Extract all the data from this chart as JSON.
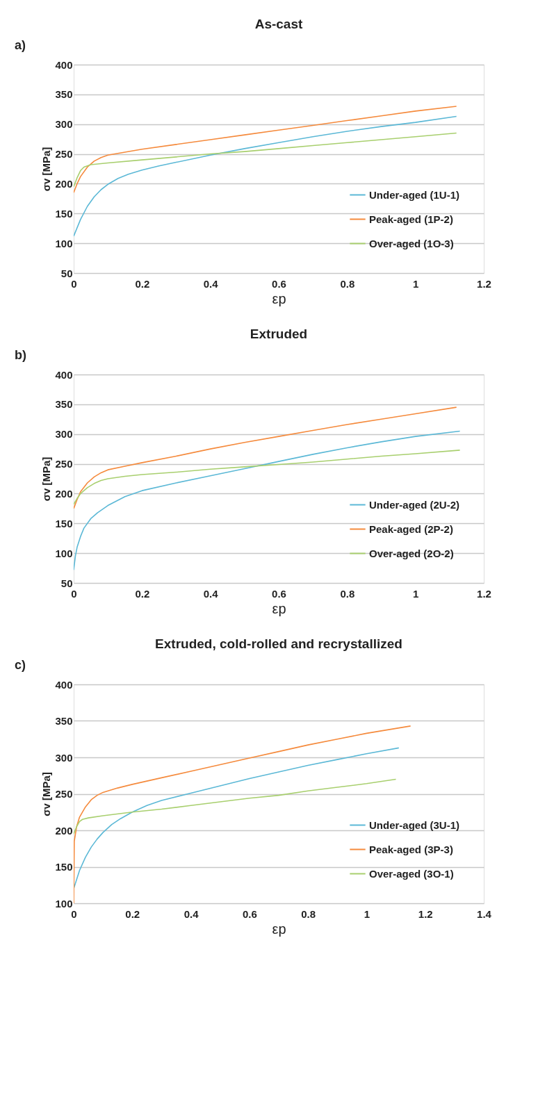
{
  "chart_data": [
    {
      "type": "line",
      "title": "As-cast",
      "xlabel": "εp",
      "ylabel": "σv [MPa]",
      "annotations": [
        "a)"
      ],
      "xlim": [
        0,
        1.2
      ],
      "xticks": [
        0,
        0.2,
        0.4,
        0.6,
        0.8,
        1,
        1.2
      ],
      "ylim": [
        50,
        400
      ],
      "yticks": [
        50,
        100,
        150,
        200,
        250,
        300,
        350,
        400
      ],
      "grid": "y",
      "legend": "bottom right",
      "marker": "none",
      "line_style": "solid",
      "series": [
        {
          "name": "Under-aged (1U-1)",
          "color": "#5bb8d6",
          "x": [
            0,
            0.02,
            0.04,
            0.06,
            0.08,
            0.1,
            0.13,
            0.16,
            0.2,
            0.25,
            0.3,
            0.4,
            0.5,
            0.6,
            0.7,
            0.8,
            0.9,
            1.0,
            1.12
          ],
          "values": [
            112,
            140,
            162,
            178,
            190,
            199,
            209,
            216,
            223,
            230,
            236,
            248,
            259,
            269,
            279,
            288,
            296,
            303,
            313
          ]
        },
        {
          "name": "Peak-aged (1P-2)",
          "color": "#f58a3c",
          "x": [
            0,
            0.01,
            0.02,
            0.04,
            0.06,
            0.08,
            0.1,
            0.15,
            0.2,
            0.3,
            0.4,
            0.5,
            0.6,
            0.7,
            0.8,
            0.9,
            1.0,
            1.12
          ],
          "values": [
            185,
            200,
            212,
            228,
            238,
            244,
            248,
            253,
            258,
            266,
            274,
            282,
            290,
            298,
            306,
            314,
            322,
            330
          ]
        },
        {
          "name": "Over-aged (1O-3)",
          "color": "#a8cf6e",
          "x": [
            0,
            0.01,
            0.02,
            0.03,
            0.05,
            0.1,
            0.2,
            0.3,
            0.4,
            0.5,
            0.6,
            0.7,
            0.8,
            0.9,
            1.0,
            1.12
          ],
          "values": [
            195,
            210,
            222,
            228,
            232,
            235,
            240,
            245,
            250,
            254,
            259,
            264,
            269,
            274,
            279,
            285
          ]
        }
      ]
    },
    {
      "type": "line",
      "title": "Extruded",
      "xlabel": "εp",
      "ylabel": "σv [MPa]",
      "annotations": [
        "b)"
      ],
      "xlim": [
        0,
        1.2
      ],
      "xticks": [
        0,
        0.2,
        0.4,
        0.6,
        0.8,
        1,
        1.2
      ],
      "ylim": [
        50,
        400
      ],
      "yticks": [
        50,
        100,
        150,
        200,
        250,
        300,
        350,
        400
      ],
      "grid": "y",
      "legend": "bottom right",
      "marker": "none",
      "line_style": "solid",
      "series": [
        {
          "name": "Under-aged (2U-2)",
          "color": "#5bb8d6",
          "x": [
            0,
            0.005,
            0.01,
            0.02,
            0.03,
            0.05,
            0.07,
            0.1,
            0.15,
            0.2,
            0.3,
            0.4,
            0.5,
            0.6,
            0.7,
            0.8,
            0.9,
            1.0,
            1.13
          ],
          "values": [
            72,
            95,
            110,
            128,
            142,
            158,
            168,
            180,
            195,
            205,
            218,
            230,
            242,
            254,
            266,
            277,
            287,
            296,
            305
          ]
        },
        {
          "name": "Peak-aged (2P-2)",
          "color": "#f58a3c",
          "x": [
            0,
            0.01,
            0.02,
            0.04,
            0.06,
            0.08,
            0.1,
            0.15,
            0.2,
            0.3,
            0.4,
            0.5,
            0.6,
            0.7,
            0.8,
            0.9,
            1.0,
            1.12
          ],
          "values": [
            175,
            190,
            203,
            218,
            228,
            235,
            240,
            246,
            252,
            263,
            275,
            286,
            296,
            306,
            316,
            325,
            334,
            345
          ]
        },
        {
          "name": "Over-aged (2O-2)",
          "color": "#a8cf6e",
          "x": [
            0,
            0.01,
            0.02,
            0.04,
            0.06,
            0.08,
            0.1,
            0.15,
            0.2,
            0.3,
            0.4,
            0.5,
            0.6,
            0.7,
            0.8,
            0.9,
            1.0,
            1.13
          ],
          "values": [
            182,
            192,
            200,
            210,
            217,
            222,
            225,
            229,
            232,
            236,
            241,
            245,
            249,
            253,
            258,
            263,
            267,
            273
          ]
        }
      ]
    },
    {
      "type": "line",
      "title": "Extruded, cold-rolled and recrystallized",
      "xlabel": "εp",
      "ylabel": "σv [MPa]",
      "annotations": [
        "c)"
      ],
      "xlim": [
        0,
        1.4
      ],
      "xticks": [
        0,
        0.2,
        0.4,
        0.6,
        0.8,
        1,
        1.2,
        1.4
      ],
      "ylim": [
        100,
        400
      ],
      "yticks": [
        100,
        150,
        200,
        250,
        300,
        350,
        400
      ],
      "grid": "y",
      "legend": "bottom right",
      "marker": "none",
      "line_style": "solid",
      "series": [
        {
          "name": "Under-aged (3U-1)",
          "color": "#5bb8d6",
          "x": [
            0,
            0.02,
            0.04,
            0.06,
            0.08,
            0.1,
            0.13,
            0.16,
            0.2,
            0.25,
            0.3,
            0.4,
            0.5,
            0.6,
            0.7,
            0.8,
            0.9,
            1.0,
            1.11
          ],
          "values": [
            120,
            145,
            163,
            177,
            188,
            197,
            208,
            216,
            225,
            234,
            241,
            251,
            261,
            271,
            280,
            289,
            297,
            305,
            313
          ]
        },
        {
          "name": "Peak-aged (3P-3)",
          "color": "#f58a3c",
          "x": [
            0,
            0.002,
            0.01,
            0.02,
            0.04,
            0.06,
            0.08,
            0.1,
            0.15,
            0.2,
            0.3,
            0.4,
            0.5,
            0.6,
            0.7,
            0.8,
            0.9,
            1.0,
            1.15
          ],
          "values": [
            100,
            185,
            205,
            218,
            232,
            242,
            248,
            252,
            258,
            263,
            272,
            281,
            290,
            299,
            308,
            317,
            325,
            333,
            343
          ]
        },
        {
          "name": "Over-aged (3O-1)",
          "color": "#a8cf6e",
          "x": [
            0,
            0.01,
            0.02,
            0.03,
            0.05,
            0.1,
            0.2,
            0.3,
            0.4,
            0.5,
            0.6,
            0.7,
            0.8,
            0.9,
            1.0,
            1.1
          ],
          "values": [
            195,
            205,
            212,
            215,
            217,
            220,
            225,
            229,
            234,
            239,
            244,
            248,
            254,
            259,
            264,
            270
          ]
        }
      ]
    }
  ]
}
